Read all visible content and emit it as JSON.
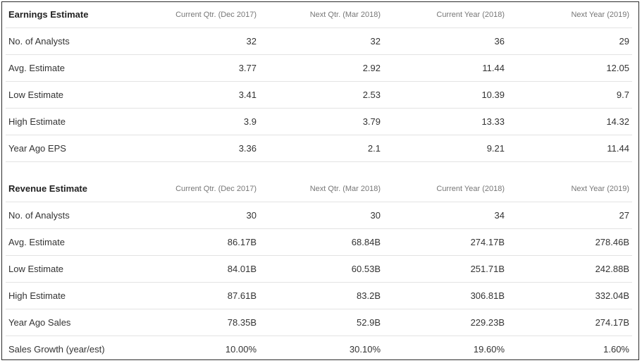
{
  "earnings": {
    "title": "Earnings Estimate",
    "columns": [
      "Current Qtr. (Dec 2017)",
      "Next Qtr. (Mar 2018)",
      "Current Year (2018)",
      "Next Year (2019)"
    ],
    "rows": [
      {
        "label": "No. of Analysts",
        "values": [
          "32",
          "32",
          "36",
          "29"
        ]
      },
      {
        "label": "Avg. Estimate",
        "values": [
          "3.77",
          "2.92",
          "11.44",
          "12.05"
        ]
      },
      {
        "label": "Low Estimate",
        "values": [
          "3.41",
          "2.53",
          "10.39",
          "9.7"
        ]
      },
      {
        "label": "High Estimate",
        "values": [
          "3.9",
          "3.79",
          "13.33",
          "14.32"
        ]
      },
      {
        "label": "Year Ago EPS",
        "values": [
          "3.36",
          "2.1",
          "9.21",
          "11.44"
        ]
      }
    ]
  },
  "revenue": {
    "title": "Revenue Estimate",
    "columns": [
      "Current Qtr. (Dec 2017)",
      "Next Qtr. (Mar 2018)",
      "Current Year (2018)",
      "Next Year (2019)"
    ],
    "rows": [
      {
        "label": "No. of Analysts",
        "values": [
          "30",
          "30",
          "34",
          "27"
        ]
      },
      {
        "label": "Avg. Estimate",
        "values": [
          "86.17B",
          "68.84B",
          "274.17B",
          "278.46B"
        ]
      },
      {
        "label": "Low Estimate",
        "values": [
          "84.01B",
          "60.53B",
          "251.71B",
          "242.88B"
        ]
      },
      {
        "label": "High Estimate",
        "values": [
          "87.61B",
          "83.2B",
          "306.81B",
          "332.04B"
        ]
      },
      {
        "label": "Year Ago Sales",
        "values": [
          "78.35B",
          "52.9B",
          "229.23B",
          "274.17B"
        ]
      },
      {
        "label": "Sales Growth (year/est)",
        "values": [
          "10.00%",
          "30.10%",
          "19.60%",
          "1.60%"
        ]
      }
    ]
  }
}
